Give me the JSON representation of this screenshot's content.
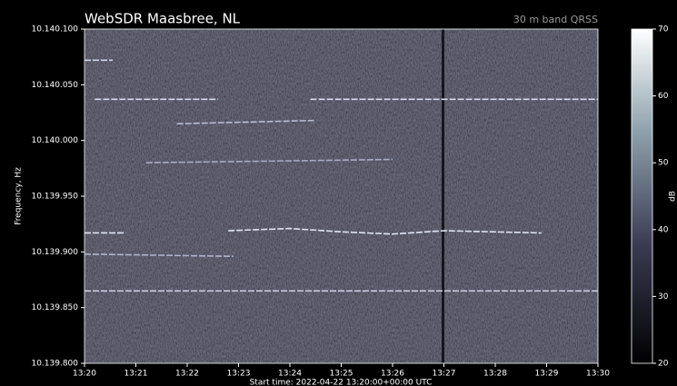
{
  "chart_data": {
    "type": "spectrogram",
    "title": "WebSDR Maasbree, NL",
    "subtitle": "30 m band QRSS",
    "xlabel": "Start time: 2022-04-22 13:20:00+00:00 UTC",
    "ylabel": "Frequency, Hz",
    "colorbar_label": "dB",
    "xlim": [
      0,
      10
    ],
    "xticks": [
      {
        "value": 0,
        "label": "13:20"
      },
      {
        "value": 1,
        "label": "13:21"
      },
      {
        "value": 2,
        "label": "13:22"
      },
      {
        "value": 3,
        "label": "13:23"
      },
      {
        "value": 4,
        "label": "13:24"
      },
      {
        "value": 5,
        "label": "13:25"
      },
      {
        "value": 6,
        "label": "13:26"
      },
      {
        "value": 7,
        "label": "13:27"
      },
      {
        "value": 8,
        "label": "13:28"
      },
      {
        "value": 9,
        "label": "13:29"
      },
      {
        "value": 10,
        "label": "13:30"
      }
    ],
    "ylim": [
      10139800,
      10140100
    ],
    "yticks": [
      {
        "value": 10139800,
        "label": "10.139.800"
      },
      {
        "value": 10139850,
        "label": "10.139.850"
      },
      {
        "value": 10139900,
        "label": "10.139.900"
      },
      {
        "value": 10139950,
        "label": "10.139.950"
      },
      {
        "value": 10140000,
        "label": "10.140.000"
      },
      {
        "value": 10140050,
        "label": "10.140.050"
      },
      {
        "value": 10140100,
        "label": "10.140.100"
      }
    ],
    "zlim": [
      20,
      70
    ],
    "zticks": [
      20,
      30,
      40,
      50,
      60,
      70
    ],
    "traces": [
      {
        "color": "#c8cbe0",
        "x": [
          0,
          10
        ],
        "y": [
          10139865,
          10139865
        ]
      },
      {
        "color": "#d8dcf0",
        "x": [
          0.2,
          2.6,
          null,
          4.4,
          10
        ],
        "y": [
          10140037,
          10140037,
          null,
          10140037,
          10140037
        ]
      },
      {
        "color": "#e0e4f4",
        "x": [
          0,
          0.8,
          null,
          2.8,
          4,
          5,
          6,
          7,
          8.9
        ],
        "y": [
          10139917,
          10139917,
          null,
          10139919,
          10139921,
          10139918,
          10139916,
          10139919,
          10139917
        ]
      },
      {
        "color": "#d0d4ea",
        "x": [
          0,
          0.55
        ],
        "y": [
          10140072,
          10140072
        ]
      },
      {
        "color": "#b8bcd4",
        "x": [
          1.8,
          4.5
        ],
        "y": [
          10140015,
          10140018
        ]
      },
      {
        "color": "#b0b4cc",
        "x": [
          0,
          2.9
        ],
        "y": [
          10139898,
          10139896
        ]
      },
      {
        "color": "#a8acc4",
        "x": [
          1.2,
          6
        ],
        "y": [
          10139980,
          10139983
        ]
      }
    ]
  }
}
